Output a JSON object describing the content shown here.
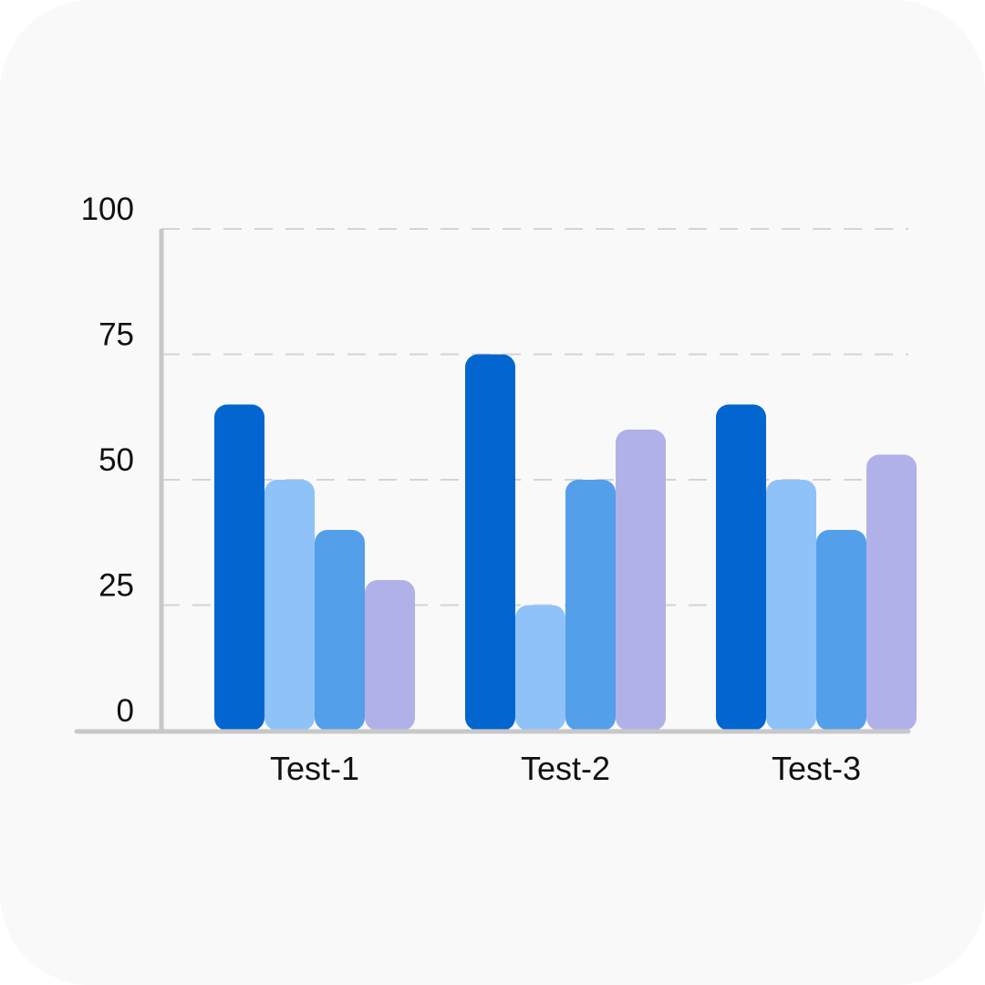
{
  "chart_data": {
    "type": "bar",
    "categories": [
      "Test-1",
      "Test-2",
      "Test-3"
    ],
    "series": [
      {
        "color": "#0366d0",
        "values": [
          65,
          75,
          65
        ]
      },
      {
        "color": "#8ec2f8",
        "values": [
          50,
          25,
          50
        ]
      },
      {
        "color": "#539fe9",
        "values": [
          40,
          50,
          40
        ]
      },
      {
        "color": "#b1b1ea",
        "values": [
          30,
          60,
          55
        ]
      }
    ],
    "y_ticks": [
      "0",
      "25",
      "50",
      "75",
      "100"
    ],
    "ylim": [
      0,
      100
    ],
    "grid": true,
    "grid_style": "dashed",
    "legend": "none",
    "axis_color": "#c8c8c8",
    "grid_color": "#d4d4d4"
  }
}
